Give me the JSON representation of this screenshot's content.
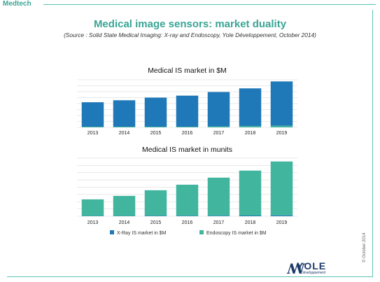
{
  "header": {
    "section_label": "Medtech"
  },
  "title": "Medical image sensors: market duality",
  "source": "(Source : Solid State Medical Imaging: X-ray and Endoscopy, Yole Développement, October 2014)",
  "copyright": "© October 2014",
  "logo": {
    "text": "YOLE",
    "sub": "Développement"
  },
  "colors": {
    "xray": "#1f78b8",
    "endoscopy": "#42b59f",
    "accent": "#3aa595"
  },
  "chart_data": [
    {
      "type": "bar",
      "title": "Medical IS market in $M",
      "categories": [
        "2013",
        "2014",
        "2015",
        "2016",
        "2017",
        "2018",
        "2019"
      ],
      "stacked": true,
      "series": [
        {
          "name": "X-Ray IS market in $M",
          "values": [
            37,
            40,
            44,
            47,
            52,
            57,
            67
          ]
        },
        {
          "name": "Endoscopy IS market in $M",
          "values": [
            1,
            1,
            1,
            1,
            1.5,
            2,
            2.5
          ]
        }
      ],
      "ylim": [
        0,
        72
      ],
      "grid": true
    },
    {
      "type": "bar",
      "title": "Medical IS market in munits",
      "categories": [
        "2013",
        "2014",
        "2015",
        "2016",
        "2017",
        "2018",
        "2019"
      ],
      "stacked": true,
      "series": [
        {
          "name": "X-Ray IS market in $M",
          "values": [
            0.2,
            0.2,
            0.3,
            0.3,
            0.4,
            0.5,
            0.6
          ]
        },
        {
          "name": "Endoscopy IS market in $M",
          "values": [
            12,
            14.5,
            18.5,
            22.5,
            27.5,
            32.5,
            39
          ]
        }
      ],
      "ylim": [
        0,
        42
      ],
      "grid": true
    }
  ],
  "legend": [
    {
      "label": "X-Ray IS market in $M",
      "color": "#1f78b8"
    },
    {
      "label": "Endoscopy IS market in $M",
      "color": "#42b59f"
    }
  ]
}
